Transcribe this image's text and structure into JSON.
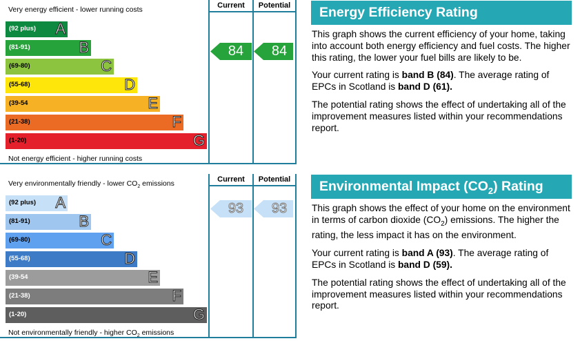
{
  "energy_chart": {
    "column_current": "Current",
    "column_potential": "Potential",
    "top_caption": "Very energy efficient - lower running costs",
    "bottom_caption": "Not energy efficient - higher running costs",
    "bands": [
      {
        "range": "(92 plus)",
        "letter": "A",
        "color": "#0d8a3f",
        "range_color": "#ffffff"
      },
      {
        "range": "(81-91)",
        "letter": "B",
        "color": "#27a33b",
        "range_color": "#ffffff"
      },
      {
        "range": "(69-80)",
        "letter": "C",
        "color": "#8cc43f",
        "range_color": "#000000"
      },
      {
        "range": "(55-68)",
        "letter": "D",
        "color": "#ffe60a",
        "range_color": "#000000"
      },
      {
        "range": "(39-54",
        "letter": "E",
        "color": "#f6b224",
        "range_color": "#000000"
      },
      {
        "range": "(21-38)",
        "letter": "F",
        "color": "#ec6b24",
        "range_color": "#000000"
      },
      {
        "range": "(1-20)",
        "letter": "G",
        "color": "#e3202b",
        "range_color": "#000000"
      }
    ],
    "current_rating": "84",
    "potential_rating": "84",
    "arrow_color": "#27a33b"
  },
  "env_chart": {
    "column_current": "Current",
    "column_potential": "Potential",
    "top_caption_pre": "Very environmentally friendly - lower CO",
    "top_caption_sub": "2",
    "top_caption_post": " emissions",
    "bottom_caption_pre": "Not environmentally friendly - higher CO",
    "bottom_caption_sub": "2",
    "bottom_caption_post": " emissions",
    "bands": [
      {
        "range": "(92 plus)",
        "letter": "A",
        "color": "#c5e0f7",
        "range_color": "#000000"
      },
      {
        "range": "(81-91)",
        "letter": "B",
        "color": "#9ec6ef",
        "range_color": "#000000"
      },
      {
        "range": "(69-80)",
        "letter": "C",
        "color": "#5fa1ef",
        "range_color": "#000000"
      },
      {
        "range": "(55-68)",
        "letter": "D",
        "color": "#3e7bc6",
        "range_color": "#ffffff"
      },
      {
        "range": "(39-54",
        "letter": "E",
        "color": "#9c9c9c",
        "range_color": "#ffffff"
      },
      {
        "range": "(21-38)",
        "letter": "F",
        "color": "#7d7d7d",
        "range_color": "#ffffff"
      },
      {
        "range": "(1-20)",
        "letter": "G",
        "color": "#5e5e5e",
        "range_color": "#ffffff"
      }
    ],
    "current_rating": "93",
    "potential_rating": "93",
    "arrow_color": "#c5e0f7"
  },
  "energy_panel": {
    "title": "Energy Efficiency Rating",
    "p1": "This graph shows the current efficiency of your home, taking into account both energy efficiency and fuel costs. The higher this rating, the lower your fuel bills are likely to be.",
    "p2_pre": "Your current rating is ",
    "p2_bold1": "band B (84)",
    "p2_mid": ". The average rating of EPCs in Scotland is ",
    "p2_bold2": "band D (61).",
    "p3": "The potential rating shows the effect of undertaking all of the improvement measures listed within your recommendations report."
  },
  "env_panel": {
    "title_pre": "Environmental Impact (CO",
    "title_sub": "2",
    "title_post": ") Rating",
    "p1_pre": "This graph shows the effect of your home on the environment in terms of carbon dioxide (CO",
    "p1_sub": "2",
    "p1_post": ") emissions. The higher the rating, the less impact it has on the environment.",
    "p2_pre": "Your current rating is ",
    "p2_bold1": "band A (93)",
    "p2_mid": ". The average rating of EPCs in Scotland is ",
    "p2_bold2": "band D (59).",
    "p3": "The potential rating shows the effect of undertaking all of the improvement measures listed within your recommendations report."
  }
}
